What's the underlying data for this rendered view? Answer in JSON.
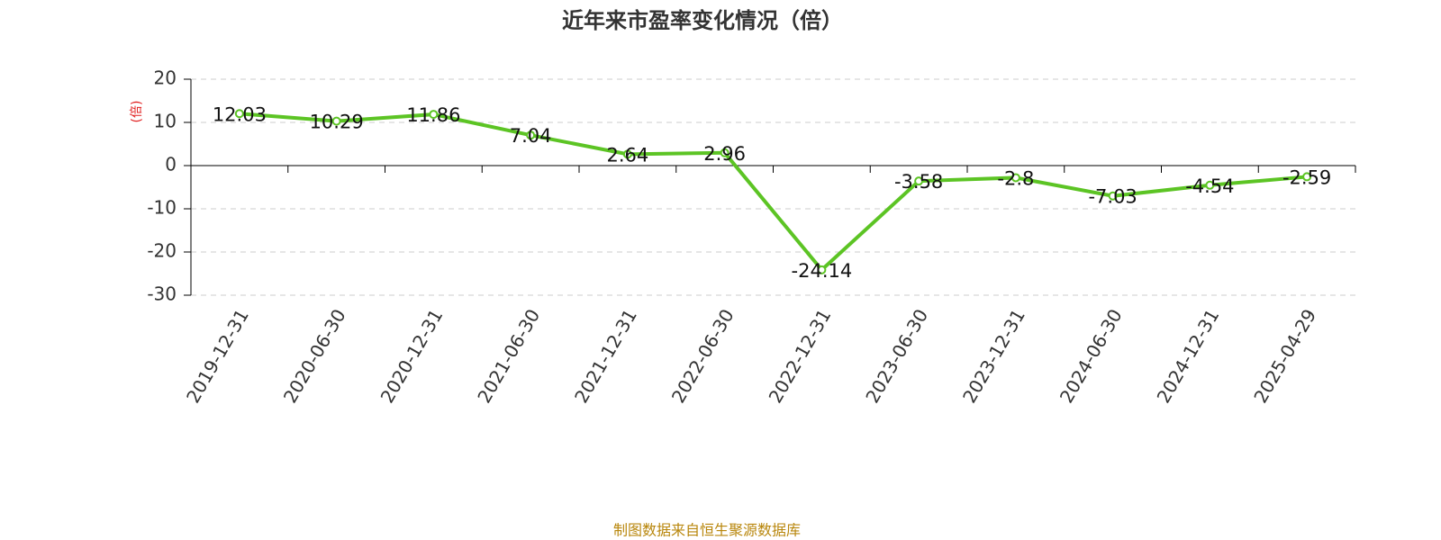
{
  "chart_data": {
    "type": "line",
    "title": "近年来市盈率变化情况（倍）",
    "y_label": "(倍)",
    "source": "制图数据来自恒生聚源数据库",
    "categories": [
      "2019-12-31",
      "2020-06-30",
      "2020-12-31",
      "2021-06-30",
      "2021-12-31",
      "2022-06-30",
      "2022-12-31",
      "2023-06-30",
      "2023-12-31",
      "2024-06-30",
      "2024-12-31",
      "2025-04-29"
    ],
    "series": [
      {
        "name": "市盈率",
        "color": "#5cc424",
        "values": [
          12.03,
          10.29,
          11.86,
          7.04,
          2.64,
          2.96,
          -24.14,
          -3.58,
          -2.8,
          -7.03,
          -4.54,
          -2.59
        ]
      }
    ],
    "ylim": [
      -30,
      20
    ],
    "yticks": [
      -30,
      -20,
      -10,
      0,
      10,
      20
    ],
    "grid": true
  }
}
